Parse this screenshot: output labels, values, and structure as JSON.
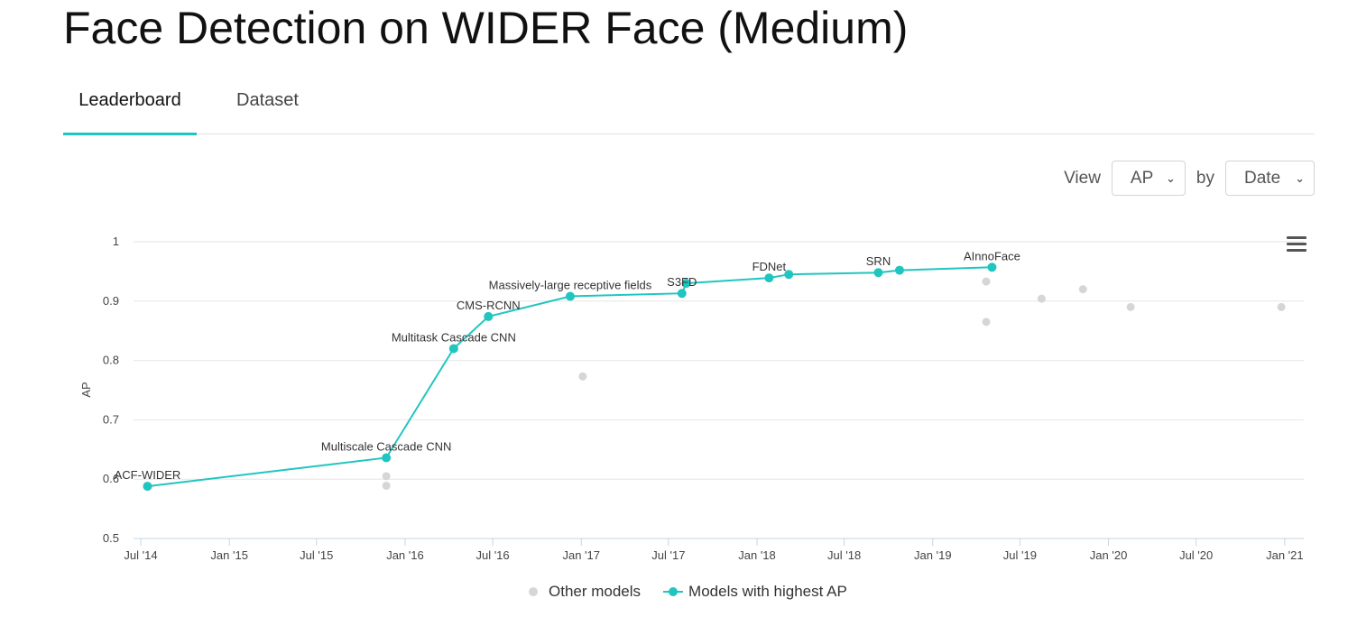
{
  "page": {
    "title": "Face Detection on WIDER Face (Medium)"
  },
  "tabs": [
    {
      "label": "Leaderboard"
    },
    {
      "label": "Dataset"
    }
  ],
  "controls": {
    "view_label": "View",
    "metric": "AP",
    "by_label": "by",
    "by_value": "Date"
  },
  "legend": {
    "other": "Other models",
    "best": "Models with highest AP"
  },
  "colors": {
    "accent": "#21c5c0",
    "other": "#d6d6d6",
    "grid": "#e6e6e6"
  },
  "chart_data": {
    "type": "scatter",
    "title": "",
    "xlabel": "",
    "ylabel": "AP",
    "ylim": [
      0.5,
      1.0
    ],
    "xlim": [
      "2014-07-01",
      "2021-01-20"
    ],
    "yticks": [
      {
        "value": 0.5,
        "label": "0.5"
      },
      {
        "value": 0.6,
        "label": "0.6"
      },
      {
        "value": 0.7,
        "label": "0.7"
      },
      {
        "value": 0.8,
        "label": "0.8"
      },
      {
        "value": 0.9,
        "label": "0.9"
      },
      {
        "value": 1.0,
        "label": "1"
      }
    ],
    "xticks": [
      {
        "date": "2014-07-01",
        "label": "Jul '14"
      },
      {
        "date": "2015-01-01",
        "label": "Jan '15"
      },
      {
        "date": "2015-07-01",
        "label": "Jul '15"
      },
      {
        "date": "2016-01-01",
        "label": "Jan '16"
      },
      {
        "date": "2016-07-01",
        "label": "Jul '16"
      },
      {
        "date": "2017-01-01",
        "label": "Jan '17"
      },
      {
        "date": "2017-07-01",
        "label": "Jul '17"
      },
      {
        "date": "2018-01-01",
        "label": "Jan '18"
      },
      {
        "date": "2018-07-01",
        "label": "Jul '18"
      },
      {
        "date": "2019-01-01",
        "label": "Jan '19"
      },
      {
        "date": "2019-07-01",
        "label": "Jul '19"
      },
      {
        "date": "2020-01-01",
        "label": "Jan '20"
      },
      {
        "date": "2020-07-01",
        "label": "Jul '20"
      },
      {
        "date": "2021-01-01",
        "label": "Jan '21"
      }
    ],
    "series": [
      {
        "name": "Models with highest AP",
        "points": [
          {
            "date": "2014-07-15",
            "value": 0.588,
            "label": "ACF-WIDER"
          },
          {
            "date": "2015-11-23",
            "value": 0.636,
            "label": "Multiscale Cascade CNN"
          },
          {
            "date": "2016-04-11",
            "value": 0.82,
            "label": "Multitask Cascade CNN"
          },
          {
            "date": "2016-06-22",
            "value": 0.874,
            "label": "CMS-RCNN"
          },
          {
            "date": "2016-12-09",
            "value": 0.908,
            "label": "Massively-large receptive fields"
          },
          {
            "date": "2017-07-29",
            "value": 0.913,
            "label": "S3FD"
          },
          {
            "date": "2017-08-07",
            "value": 0.93,
            "label": ""
          },
          {
            "date": "2018-01-26",
            "value": 0.939,
            "label": "FDNet"
          },
          {
            "date": "2018-03-08",
            "value": 0.945,
            "label": ""
          },
          {
            "date": "2018-09-10",
            "value": 0.948,
            "label": "SRN"
          },
          {
            "date": "2018-10-24",
            "value": 0.952,
            "label": ""
          },
          {
            "date": "2019-05-04",
            "value": 0.957,
            "label": "AInnoFace"
          }
        ]
      },
      {
        "name": "Other models",
        "points": [
          {
            "date": "2015-11-23",
            "value": 0.605
          },
          {
            "date": "2015-11-23",
            "value": 0.589
          },
          {
            "date": "2017-01-04",
            "value": 0.773
          },
          {
            "date": "2019-04-22",
            "value": 0.933
          },
          {
            "date": "2019-04-22",
            "value": 0.865
          },
          {
            "date": "2019-08-15",
            "value": 0.904
          },
          {
            "date": "2019-11-09",
            "value": 0.92
          },
          {
            "date": "2020-02-16",
            "value": 0.89
          },
          {
            "date": "2020-12-25",
            "value": 0.89
          }
        ]
      }
    ]
  }
}
